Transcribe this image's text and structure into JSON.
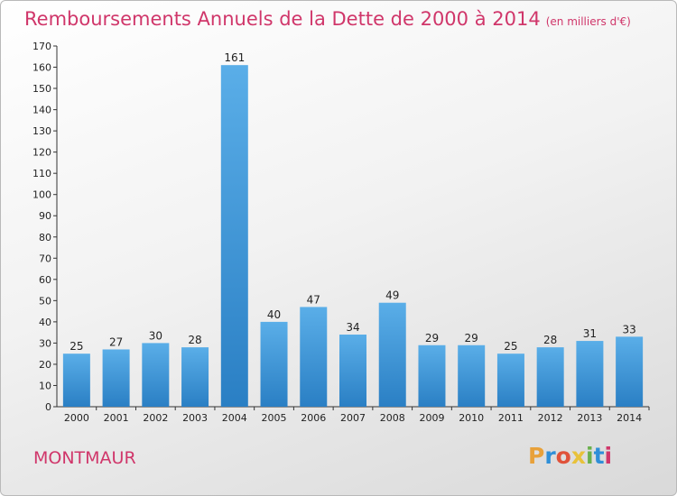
{
  "header": {
    "title": "Remboursements Annuels de la Dette de 2000 à 2014",
    "unit": "(en milliers d'€)"
  },
  "footer": {
    "commune": "MONTMAUR",
    "logo": "Proxiti"
  },
  "colors": {
    "title": "#d0366a",
    "bar_top": "#5aaee8",
    "bar_bottom": "#2a7fc4"
  },
  "chart_data": {
    "type": "bar",
    "title": "Remboursements Annuels de la Dette de 2000 à 2014",
    "ylabel": "(en milliers d'€)",
    "categories": [
      "2000",
      "2001",
      "2002",
      "2003",
      "2004",
      "2005",
      "2006",
      "2007",
      "2008",
      "2009",
      "2010",
      "2011",
      "2012",
      "2013",
      "2014"
    ],
    "values": [
      25,
      27,
      30,
      28,
      161,
      40,
      47,
      34,
      49,
      29,
      29,
      25,
      28,
      31,
      33
    ],
    "ylim": [
      0,
      170
    ],
    "yticks": [
      0,
      10,
      20,
      30,
      40,
      50,
      60,
      70,
      80,
      90,
      100,
      110,
      120,
      130,
      140,
      150,
      160,
      170
    ],
    "grid": false
  }
}
